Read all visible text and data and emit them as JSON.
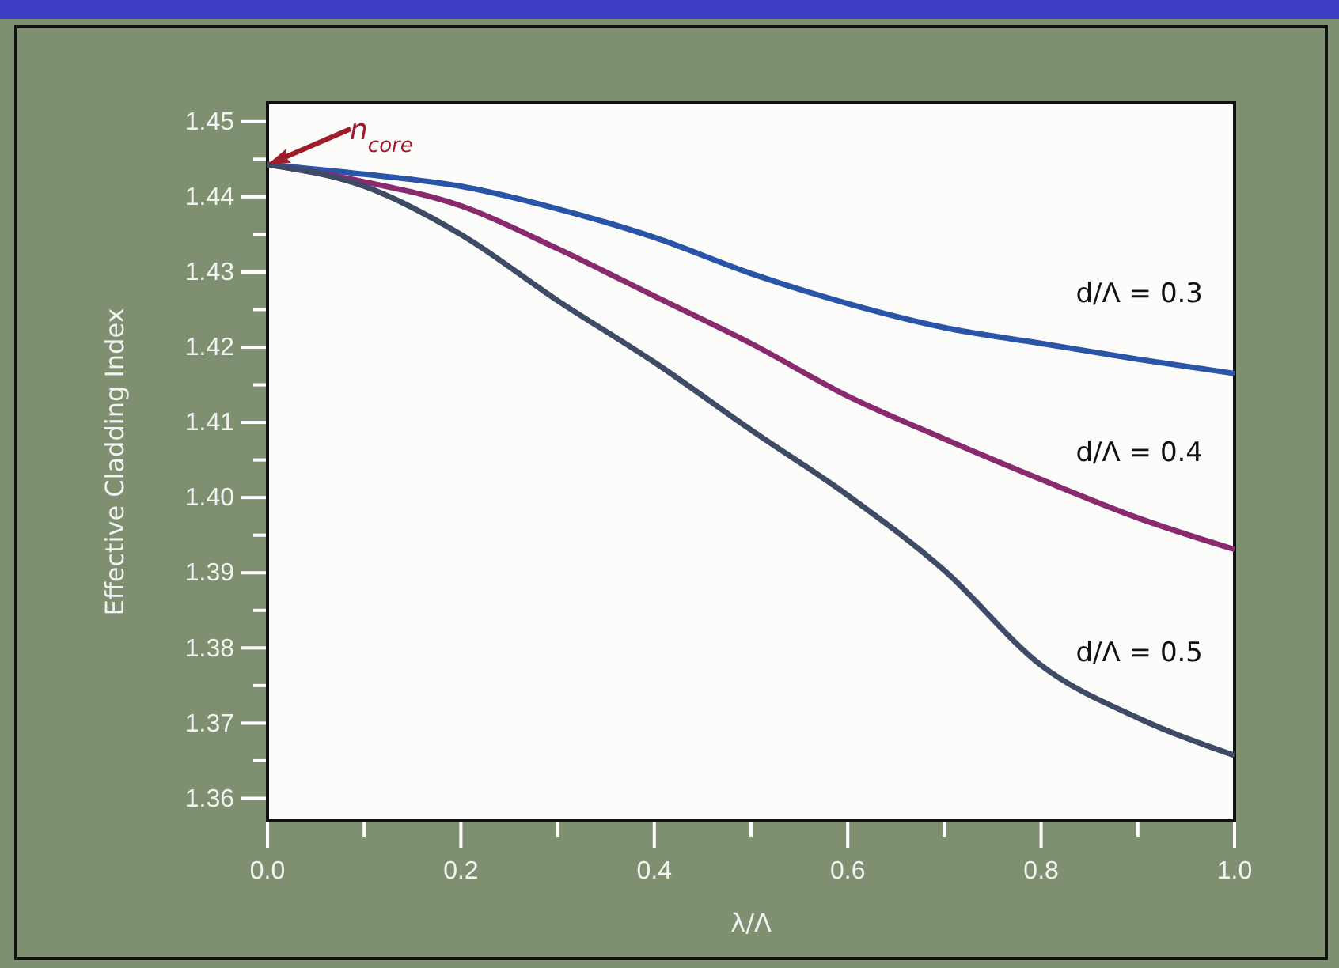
{
  "chart_data": {
    "type": "line",
    "xlabel": "λ/Λ",
    "ylabel": "Effective Cladding Index",
    "x": [
      0,
      0.1,
      0.2,
      0.3,
      0.4,
      0.5,
      0.6,
      0.7,
      0.8,
      0.9,
      1.0
    ],
    "series": [
      {
        "name": "d/Λ = 0.3",
        "color": "#2a54a8",
        "values": [
          1.4443,
          1.443,
          1.4414,
          1.4384,
          1.4346,
          1.4298,
          1.4258,
          1.4226,
          1.4205,
          1.4184,
          1.4165
        ]
      },
      {
        "name": "d/Λ = 0.4",
        "color": "#8a2a6e",
        "values": [
          1.4443,
          1.442,
          1.4388,
          1.4331,
          1.4268,
          1.4205,
          1.4135,
          1.4078,
          1.4024,
          1.3973,
          1.3931
        ]
      },
      {
        "name": "d/Λ = 0.5",
        "color": "#3e4a66",
        "values": [
          1.4443,
          1.4414,
          1.435,
          1.4262,
          1.418,
          1.409,
          1.4003,
          1.3903,
          1.3777,
          1.3707,
          1.3657
        ]
      }
    ],
    "xlim": [
      0,
      1
    ],
    "ylim": [
      1.357,
      1.4525
    ],
    "xticks": [
      {
        "value": 0,
        "label": "0.0"
      },
      {
        "value": 0.1,
        "label": null
      },
      0.2,
      {
        "value": 0.3,
        "label": null
      },
      0.4,
      {
        "value": 0.5,
        "label": null
      },
      0.6,
      {
        "value": 0.7,
        "label": null
      },
      0.8,
      {
        "value": 0.9,
        "label": null
      },
      {
        "value": 1,
        "label": "1.0"
      }
    ],
    "yticks": [
      1.36,
      {
        "value": 1.365,
        "label": null
      },
      1.37,
      {
        "value": 1.375,
        "label": null
      },
      1.38,
      {
        "value": 1.385,
        "label": null
      },
      1.39,
      {
        "value": 1.395,
        "label": null
      },
      {
        "value": 1.4,
        "label": "1.40"
      },
      {
        "value": 1.405,
        "label": null
      },
      1.41,
      {
        "value": 1.415,
        "label": null
      },
      1.42,
      {
        "value": 1.425,
        "label": null
      },
      1.43,
      {
        "value": 1.435,
        "label": null
      },
      1.44,
      {
        "value": 1.445,
        "label": null
      },
      1.45
    ],
    "annotations": [
      {
        "text": "n$_{core}$",
        "x": 0,
        "y": 1.4443
      }
    ],
    "grid": false,
    "marker": "none",
    "line_style": "solid"
  }
}
